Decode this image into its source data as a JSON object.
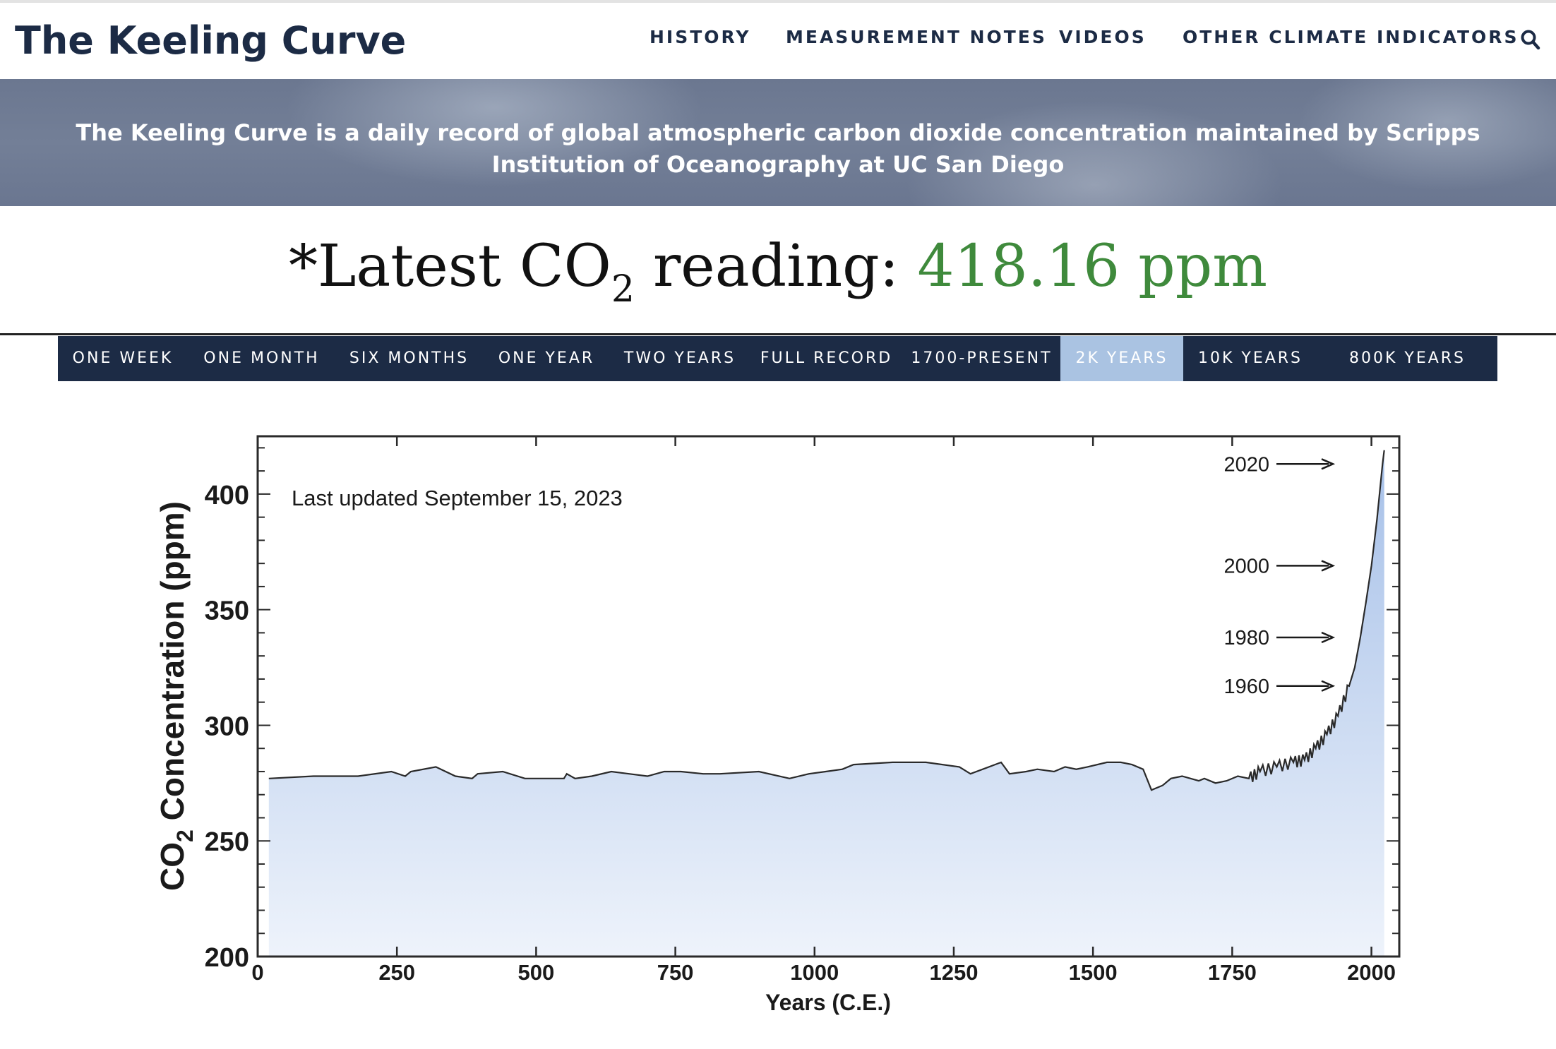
{
  "site": {
    "title": "The Keeling Curve"
  },
  "nav": {
    "items": [
      "HISTORY",
      "MEASUREMENT NOTES",
      "VIDEOS",
      "OTHER CLIMATE INDICATORS"
    ],
    "search_icon": "search-icon"
  },
  "banner": {
    "text": "The Keeling Curve is a daily record of global atmospheric carbon dioxide concentration maintained by Scripps Institution of Oceanography at UC San Diego"
  },
  "reading": {
    "prefix": "*Latest CO",
    "subscript": "2",
    "suffix": " reading: ",
    "value": "418.16 ppm",
    "value_color": "#3f8a3c"
  },
  "tabs": {
    "items": [
      "ONE WEEK",
      "ONE MONTH",
      "SIX MONTHS",
      "ONE YEAR",
      "TWO YEARS",
      "FULL RECORD",
      "1700-PRESENT",
      "2K YEARS",
      "10K YEARS",
      "800K YEARS"
    ],
    "active": "2K YEARS",
    "bar_color": "#1c2b45",
    "active_color": "#aac3e2"
  },
  "chart_data": {
    "type": "area",
    "annotation": "Last updated September 15, 2023",
    "xlabel": "Years (C.E.)",
    "ylabel": "CO2 Concentration (ppm)",
    "xlim": [
      0,
      2050
    ],
    "ylim": [
      200,
      425
    ],
    "xticks": [
      "0",
      "250",
      "500",
      "750",
      "1000",
      "1250",
      "1500",
      "1750",
      "2000"
    ],
    "yticks": [
      "200",
      "250",
      "300",
      "350",
      "400"
    ],
    "grid": false,
    "fill_color_top": "#a6c0e8",
    "fill_color_bottom": "#eef3fb",
    "arrow_labels": [
      {
        "label": "2020",
        "value": 413
      },
      {
        "label": "2000",
        "value": 369
      },
      {
        "label": "1980",
        "value": 338
      },
      {
        "label": "1960",
        "value": 317
      }
    ],
    "x": [
      20,
      100,
      160,
      180,
      240,
      265,
      275,
      320,
      355,
      385,
      395,
      440,
      480,
      550,
      555,
      570,
      600,
      635,
      700,
      730,
      760,
      800,
      830,
      900,
      955,
      990,
      1020,
      1050,
      1070,
      1140,
      1200,
      1260,
      1280,
      1335,
      1350,
      1380,
      1400,
      1430,
      1450,
      1470,
      1490,
      1525,
      1550,
      1570,
      1590,
      1605,
      1625,
      1640,
      1660,
      1690,
      1700,
      1720,
      1740,
      1760,
      1780,
      1800,
      1830,
      1860,
      1880,
      1900,
      1920,
      1940,
      1960,
      1970,
      1980,
      1990,
      2000,
      2010,
      2020,
      2023
    ],
    "y": [
      277,
      278,
      278,
      278,
      280,
      278,
      280,
      282,
      278,
      277,
      279,
      280,
      277,
      277,
      279,
      277,
      278,
      280,
      278,
      280,
      280,
      279,
      279,
      280,
      277,
      279,
      280,
      281,
      283,
      284,
      284,
      282,
      279,
      284,
      279,
      280,
      281,
      280,
      282,
      281,
      282,
      284,
      284,
      283,
      281,
      272,
      274,
      277,
      278,
      276,
      277,
      275,
      276,
      278,
      277,
      280,
      282,
      284,
      285,
      290,
      296,
      304,
      317,
      325,
      338,
      353,
      369,
      389,
      413,
      419
    ]
  }
}
